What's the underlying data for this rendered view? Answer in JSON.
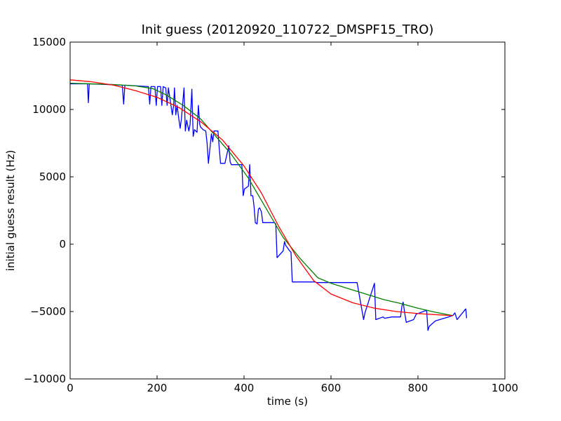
{
  "chart_data": {
    "type": "line",
    "title": "Init guess (20120920_110722_DMSPF15_TRO)",
    "xlabel": "time (s)",
    "ylabel": "initial guess result (Hz)",
    "xlim": [
      0,
      1000
    ],
    "ylim": [
      -10000,
      15000
    ],
    "xticks": [
      0,
      200,
      400,
      600,
      800,
      1000
    ],
    "yticks": [
      -10000,
      -5000,
      0,
      5000,
      10000,
      15000
    ],
    "xtick_labels": [
      "0",
      "200",
      "400",
      "600",
      "800",
      "1000"
    ],
    "ytick_labels": [
      "−10000",
      "−5000",
      "0",
      "5000",
      "10000",
      "15000"
    ],
    "grid": false,
    "legend": "none",
    "series": [
      {
        "color": "#0000ff",
        "x": [
          0,
          40,
          42,
          44,
          120,
          123,
          126,
          180,
          183,
          186,
          195,
          198,
          201,
          208,
          211,
          214,
          220,
          223,
          226,
          232,
          235,
          238,
          240,
          243,
          246,
          250,
          253,
          256,
          262,
          265,
          268,
          270,
          273,
          276,
          280,
          283,
          286,
          292,
          295,
          298,
          300,
          303,
          306,
          312,
          315,
          318,
          325,
          328,
          331,
          340,
          343,
          346,
          350,
          353,
          356,
          365,
          368,
          371,
          380,
          383,
          386,
          395,
          398,
          401,
          410,
          413,
          416,
          420,
          423,
          426,
          430,
          433,
          436,
          440,
          443,
          446,
          450,
          453,
          456,
          470,
          473,
          476,
          490,
          493,
          496,
          505,
          508,
          511,
          520,
          523,
          526,
          535,
          538,
          541,
          560,
          563,
          566,
          600,
          630,
          660,
          675,
          678,
          700,
          703,
          720,
          723,
          740,
          760,
          763,
          766,
          770,
          773,
          790,
          793,
          796,
          820,
          823,
          826,
          840,
          860,
          870,
          880,
          885,
          890,
          900,
          910,
          912
        ],
        "y": [
          11900,
          11900,
          10500,
          11900,
          11800,
          10400,
          11800,
          11700,
          10400,
          11700,
          11700,
          10300,
          11700,
          11700,
          10300,
          11700,
          11600,
          10300,
          11600,
          10300,
          9600,
          10300,
          11600,
          9600,
          10300,
          9300,
          8600,
          9300,
          11600,
          8400,
          9200,
          8900,
          8400,
          8900,
          11500,
          8000,
          8500,
          8300,
          10300,
          8900,
          8700,
          8600,
          8500,
          8400,
          7500,
          6000,
          8200,
          7600,
          8400,
          8400,
          7100,
          6000,
          6000,
          6000,
          6000,
          7300,
          6100,
          5900,
          5900,
          5900,
          5900,
          5900,
          3600,
          4100,
          4300,
          5900,
          3600,
          3600,
          2800,
          1600,
          1500,
          2600,
          2700,
          2400,
          1600,
          1600,
          1600,
          1600,
          1600,
          1600,
          1500,
          -1000,
          -500,
          200,
          -100,
          -500,
          -600,
          -2800,
          -2800,
          -2800,
          -2800,
          -2800,
          -2800,
          -2800,
          -2800,
          -2800,
          -2850,
          -2850,
          -2850,
          -2850,
          -5600,
          -5100,
          -2900,
          -5600,
          -5400,
          -5500,
          -5400,
          -5400,
          -4600,
          -4300,
          -5200,
          -5800,
          -5600,
          -5400,
          -5200,
          -4900,
          -6400,
          -6100,
          -5700,
          -5500,
          -5400,
          -5300,
          -5100,
          -5600,
          -5200,
          -4800,
          -5500
        ]
      },
      {
        "color": "#008000",
        "x": [
          0,
          100,
          150,
          190,
          220,
          260,
          300,
          330,
          370,
          410,
          450,
          490,
          530,
          570,
          600,
          640,
          680,
          720,
          760,
          800,
          840,
          880
        ],
        "y": [
          11950,
          11850,
          11750,
          11550,
          11100,
          10300,
          9300,
          8200,
          6700,
          4900,
          2700,
          500,
          -1100,
          -2500,
          -2900,
          -3300,
          -3700,
          -4100,
          -4400,
          -4750,
          -5050,
          -5300
        ]
      },
      {
        "color": "#ff0000",
        "x": [
          0,
          50,
          100,
          150,
          200,
          250,
          300,
          350,
          400,
          440,
          480,
          520,
          560,
          600,
          650,
          700,
          750,
          800,
          850,
          880
        ],
        "y": [
          12200,
          12050,
          11800,
          11400,
          10900,
          10150,
          9100,
          7750,
          5800,
          3800,
          1300,
          -900,
          -2700,
          -3700,
          -4350,
          -4750,
          -5000,
          -5150,
          -5250,
          -5300
        ]
      }
    ]
  }
}
